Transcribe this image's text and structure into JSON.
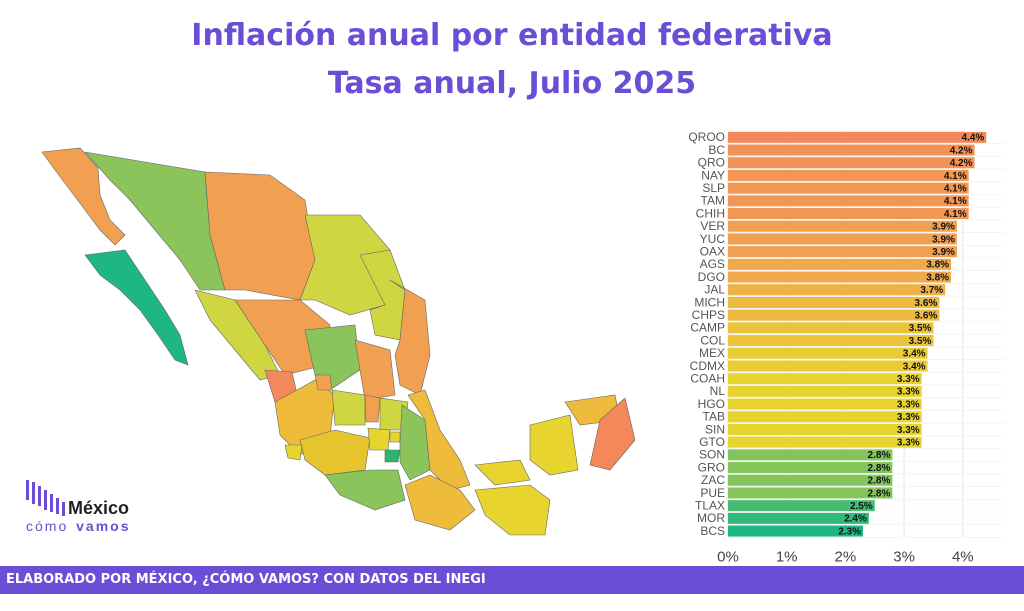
{
  "header": {
    "title_line1": "Inflación anual por entidad federativa",
    "title_line2": "Tasa anual, Julio 2025"
  },
  "logo": {
    "brand_top": "México",
    "brand_bottom_1": "cómo",
    "brand_bottom_2": "vamos"
  },
  "footer": {
    "text": "ELABORADO POR MÉXICO, ¿CÓMO VAMOS? CON DATOS DEL INEGI"
  },
  "colors": {
    "accent": "#6a4fd6",
    "high": "#f4885a",
    "mid": "#e8d42f",
    "low": "#1db684"
  },
  "chart_data": {
    "type": "bar",
    "orientation": "horizontal",
    "categories": [
      "QROO",
      "BC",
      "QRO",
      "NAY",
      "SLP",
      "TAM",
      "CHIH",
      "VER",
      "YUC",
      "OAX",
      "AGS",
      "DGO",
      "JAL",
      "MICH",
      "CHPS",
      "CAMP",
      "COL",
      "MEX",
      "CDMX",
      "COAH",
      "NL",
      "HGO",
      "TAB",
      "SIN",
      "GTO",
      "SON",
      "GRO",
      "ZAC",
      "PUE",
      "TLAX",
      "MOR",
      "BCS"
    ],
    "values": [
      4.4,
      4.2,
      4.2,
      4.1,
      4.1,
      4.1,
      4.1,
      3.9,
      3.9,
      3.9,
      3.8,
      3.8,
      3.7,
      3.6,
      3.6,
      3.5,
      3.5,
      3.4,
      3.4,
      3.3,
      3.3,
      3.3,
      3.3,
      3.3,
      3.3,
      2.8,
      2.8,
      2.8,
      2.8,
      2.5,
      2.4,
      2.3
    ],
    "labels": [
      "4.4%",
      "4.2%",
      "4.2%",
      "4.1%",
      "4.1%",
      "4.1%",
      "4.1%",
      "3.9%",
      "3.9%",
      "3.9%",
      "3.8%",
      "3.8%",
      "3.7%",
      "3.6%",
      "3.6%",
      "3.5%",
      "3.5%",
      "3.4%",
      "3.4%",
      "3.3%",
      "3.3%",
      "3.3%",
      "3.3%",
      "3.3%",
      "3.3%",
      "2.8%",
      "2.8%",
      "2.8%",
      "2.8%",
      "2.5%",
      "2.4%",
      "2.3%"
    ],
    "x_ticks": [
      0,
      1,
      2,
      3,
      4
    ],
    "x_tick_labels": [
      "0%",
      "1%",
      "2%",
      "3%",
      "4%"
    ],
    "xlim": [
      0,
      4.6
    ],
    "grid": true
  }
}
